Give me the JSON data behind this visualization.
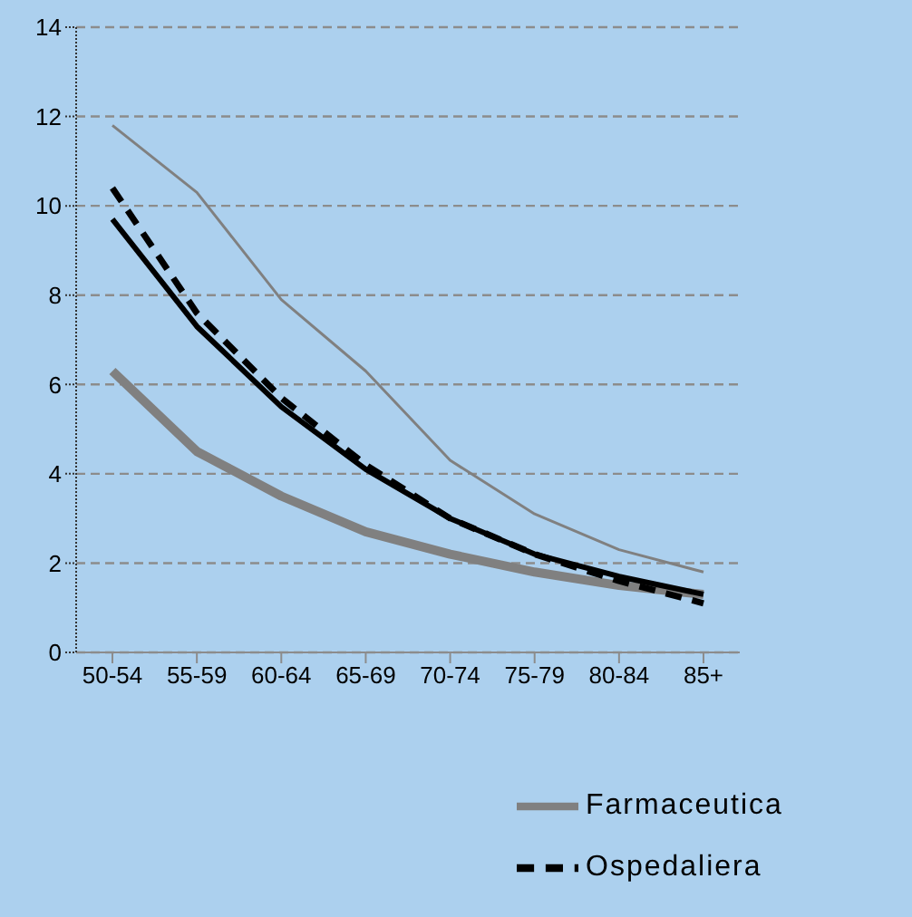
{
  "chart_data": {
    "type": "line",
    "categories": [
      "50-54",
      "55-59",
      "60-64",
      "65-69",
      "70-74",
      "75-79",
      "80-84",
      "85+"
    ],
    "series": [
      {
        "color": "#808080",
        "values": [
          11.8,
          10.3,
          7.9,
          6.3,
          4.3,
          3.1,
          2.3,
          1.8
        ],
        "line_style": "solid"
      },
      {
        "name": "Farmaceutica",
        "color": "#808080",
        "values": [
          6.3,
          4.5,
          3.5,
          2.7,
          2.2,
          1.8,
          1.5,
          1.3
        ],
        "line_style": "solid"
      },
      {
        "color": "#000000",
        "values": [
          9.7,
          7.3,
          5.5,
          4.1,
          3.0,
          2.2,
          1.7,
          1.3
        ],
        "line_style": "solid"
      },
      {
        "name": "Ospedaliera",
        "color": "#000000",
        "values": [
          10.4,
          7.6,
          5.7,
          4.2,
          3.0,
          2.2,
          1.6,
          1.1
        ],
        "line_style": "dashed"
      }
    ],
    "ylim": [
      0,
      14
    ],
    "yticks": [
      0,
      2,
      4,
      6,
      8,
      10,
      12,
      14
    ],
    "grid": "y",
    "legend": "bottom right",
    "marker": "none"
  }
}
